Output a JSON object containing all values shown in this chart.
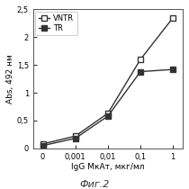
{
  "x_positions": [
    0,
    1,
    2,
    3,
    4
  ],
  "x_tick_labels": [
    "0",
    "0,001",
    "0,01",
    "0,1",
    "1"
  ],
  "vntr_y": [
    0.08,
    0.22,
    0.63,
    1.6,
    2.35
  ],
  "tr_y": [
    0.05,
    0.18,
    0.58,
    1.38,
    1.42
  ],
  "y_ticks": [
    0,
    0.5,
    1.0,
    1.5,
    2.0
  ],
  "y_tick_labels": [
    "0",
    "0,5",
    "1",
    "1,5",
    "2"
  ],
  "ylim": [
    0,
    2.5
  ],
  "ytop_label": "2,5",
  "ylabel": "Abs, 492 нм",
  "xlabel": "IgG МкАт, мкг/мл",
  "caption": "Фиг.2",
  "legend_vntr": "VNTR",
  "legend_tr": "TR",
  "line_color": "#333333",
  "bg_color": "#ffffff",
  "fig_bg": "#ffffff"
}
